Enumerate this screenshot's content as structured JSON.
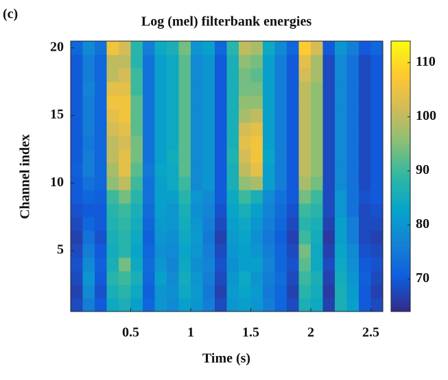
{
  "chart_data": {
    "type": "heatmap",
    "panel_label": "(c)",
    "title": "Log (mel) filterbank energies",
    "xlabel": "Time (s)",
    "ylabel": "Channel index",
    "colormap": "parula",
    "x": [
      0.05,
      0.15,
      0.25,
      0.35,
      0.45,
      0.55,
      0.65,
      0.75,
      0.85,
      0.95,
      1.05,
      1.15,
      1.25,
      1.35,
      1.45,
      1.55,
      1.65,
      1.75,
      1.85,
      1.95,
      2.05,
      2.15,
      2.25,
      2.35,
      2.45,
      2.55
    ],
    "y": [
      1,
      2,
      3,
      4,
      5,
      6,
      7,
      8,
      9,
      10,
      11,
      12,
      13,
      14,
      15,
      16,
      17,
      18,
      19,
      20
    ],
    "z": [
      [
        68,
        76,
        70,
        84,
        86,
        82,
        72,
        80,
        78,
        82,
        80,
        76,
        68,
        80,
        82,
        80,
        76,
        72,
        68,
        86,
        84,
        67,
        86,
        82,
        70,
        68
      ],
      [
        67,
        78,
        69,
        86,
        88,
        84,
        71,
        80,
        79,
        84,
        81,
        75,
        67,
        81,
        83,
        81,
        75,
        72,
        67,
        88,
        85,
        66,
        86,
        81,
        70,
        67
      ],
      [
        68,
        80,
        70,
        88,
        90,
        86,
        72,
        82,
        78,
        85,
        80,
        76,
        68,
        80,
        84,
        80,
        76,
        73,
        68,
        90,
        86,
        67,
        85,
        80,
        71,
        68
      ],
      [
        69,
        78,
        71,
        86,
        94,
        84,
        73,
        80,
        77,
        84,
        79,
        77,
        69,
        79,
        82,
        82,
        77,
        72,
        69,
        92,
        84,
        68,
        84,
        79,
        70,
        69
      ],
      [
        68,
        76,
        70,
        85,
        88,
        83,
        72,
        79,
        78,
        83,
        80,
        76,
        68,
        80,
        82,
        80,
        76,
        72,
        68,
        94,
        84,
        67,
        83,
        78,
        69,
        68
      ],
      [
        67,
        74,
        69,
        86,
        88,
        84,
        71,
        80,
        79,
        84,
        81,
        75,
        67,
        81,
        83,
        79,
        75,
        71,
        67,
        90,
        85,
        66,
        82,
        76,
        68,
        67
      ],
      [
        68,
        72,
        70,
        87,
        89,
        85,
        72,
        81,
        80,
        85,
        80,
        76,
        68,
        82,
        84,
        80,
        76,
        72,
        68,
        88,
        86,
        67,
        82,
        76,
        68,
        68
      ],
      [
        69,
        70,
        70,
        88,
        90,
        86,
        73,
        82,
        80,
        86,
        79,
        77,
        69,
        83,
        86,
        82,
        77,
        73,
        69,
        90,
        88,
        68,
        80,
        74,
        68,
        69
      ],
      [
        70,
        72,
        71,
        90,
        94,
        88,
        74,
        82,
        82,
        88,
        80,
        78,
        70,
        84,
        90,
        86,
        78,
        74,
        70,
        94,
        90,
        68,
        80,
        74,
        69,
        70
      ],
      [
        70,
        74,
        72,
        96,
        100,
        90,
        74,
        82,
        84,
        90,
        78,
        80,
        70,
        86,
        96,
        98,
        82,
        76,
        70,
        98,
        94,
        68,
        78,
        74,
        68,
        70
      ],
      [
        71,
        76,
        72,
        98,
        104,
        92,
        75,
        83,
        84,
        92,
        78,
        80,
        70,
        86,
        100,
        104,
        82,
        76,
        70,
        100,
        96,
        68,
        78,
        74,
        68,
        70
      ],
      [
        70,
        76,
        72,
        100,
        104,
        94,
        74,
        82,
        85,
        92,
        78,
        80,
        70,
        87,
        102,
        106,
        83,
        76,
        70,
        100,
        96,
        68,
        78,
        74,
        68,
        70
      ],
      [
        70,
        75,
        72,
        100,
        102,
        94,
        74,
        82,
        84,
        92,
        78,
        80,
        70,
        86,
        104,
        106,
        82,
        76,
        70,
        100,
        96,
        68,
        78,
        74,
        68,
        70
      ],
      [
        70,
        76,
        72,
        102,
        104,
        92,
        74,
        82,
        84,
        92,
        78,
        80,
        70,
        86,
        102,
        104,
        82,
        76,
        70,
        100,
        96,
        68,
        78,
        74,
        68,
        70
      ],
      [
        70,
        76,
        72,
        104,
        106,
        92,
        74,
        82,
        84,
        92,
        78,
        80,
        70,
        86,
        98,
        100,
        82,
        76,
        70,
        100,
        96,
        68,
        78,
        74,
        68,
        70
      ],
      [
        70,
        76,
        72,
        106,
        106,
        92,
        74,
        82,
        84,
        92,
        78,
        80,
        70,
        86,
        96,
        96,
        82,
        76,
        70,
        100,
        96,
        68,
        78,
        74,
        68,
        70
      ],
      [
        70,
        77,
        72,
        104,
        104,
        90,
        74,
        82,
        84,
        92,
        78,
        80,
        70,
        86,
        94,
        94,
        82,
        76,
        70,
        100,
        96,
        68,
        78,
        74,
        68,
        70
      ],
      [
        70,
        76,
        72,
        100,
        102,
        90,
        74,
        82,
        84,
        92,
        78,
        80,
        70,
        86,
        94,
        92,
        82,
        76,
        70,
        102,
        98,
        68,
        78,
        74,
        68,
        70
      ],
      [
        70,
        76,
        72,
        100,
        100,
        88,
        74,
        82,
        84,
        92,
        78,
        80,
        70,
        86,
        96,
        94,
        82,
        76,
        70,
        104,
        98,
        68,
        78,
        74,
        68,
        70
      ],
      [
        72,
        78,
        74,
        106,
        102,
        88,
        76,
        84,
        86,
        94,
        80,
        82,
        72,
        88,
        100,
        98,
        84,
        78,
        72,
        108,
        102,
        70,
        80,
        76,
        70,
        72
      ]
    ],
    "xlim": [
      0,
      2.6
    ],
    "xticks": [
      0.5,
      1,
      1.5,
      2,
      2.5
    ],
    "ylim": [
      0.5,
      20.5
    ],
    "yticks": [
      5,
      10,
      15,
      20
    ],
    "clim": [
      64,
      114
    ],
    "cticks": [
      70,
      80,
      90,
      100,
      110
    ]
  }
}
